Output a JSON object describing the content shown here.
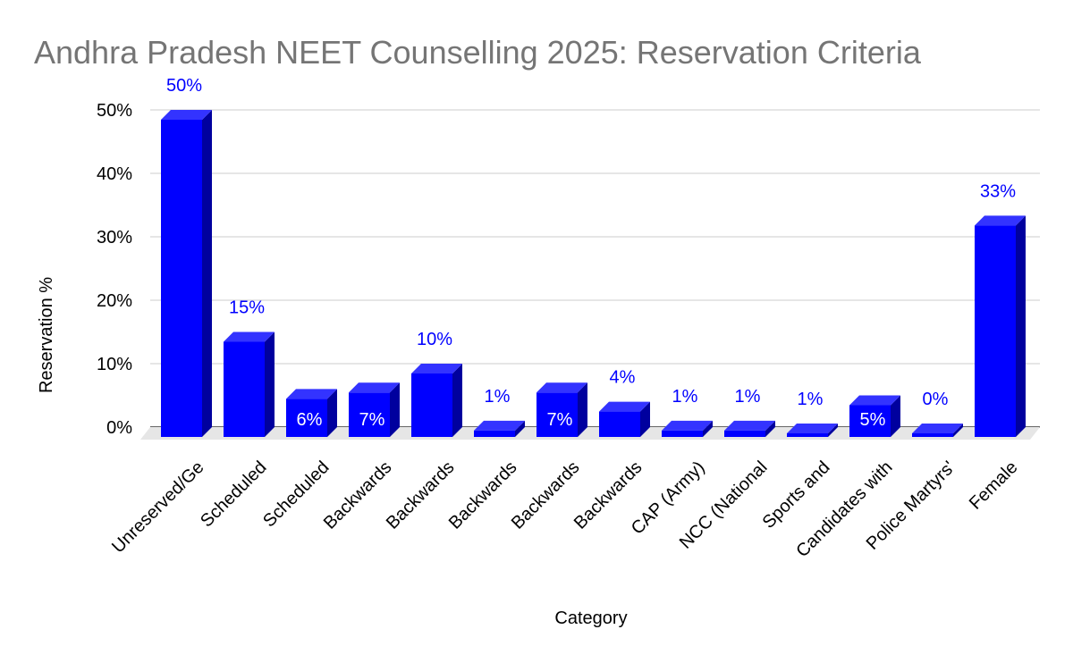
{
  "chart_data": {
    "type": "bar",
    "title": "Andhra Pradesh NEET Counselling 2025: Reservation Criteria",
    "xlabel": "Category",
    "ylabel": "Reservation %",
    "ylim": [
      0,
      50
    ],
    "yticks": [
      "0%",
      "10%",
      "20%",
      "30%",
      "40%",
      "50%"
    ],
    "grid": true,
    "legend": "none",
    "style": "3d-columns",
    "colors": {
      "bar_front": "#0000ff",
      "bar_top": "#3333ff",
      "bar_side": "#00009e",
      "label_outside": "#0000ff",
      "label_inside": "#ffffff",
      "gridline": "#cccccc",
      "floor": "#e6e6e6"
    },
    "categories": [
      "Unreserved/Ge",
      "Scheduled",
      "Scheduled",
      "Backwards",
      "Backwards",
      "Backwards",
      "Backwards",
      "Backwards",
      "CAP (Army)",
      "NCC (National",
      "Sports and",
      "Candidates with",
      "Police Martyrs'",
      "Female"
    ],
    "values": [
      50,
      15,
      6,
      7,
      10,
      1,
      7,
      4,
      1,
      1,
      0.5,
      5,
      0.25,
      33.33
    ],
    "data_labels": [
      "50%",
      "15%",
      "6%",
      "7%",
      "10%",
      "1%",
      "7%",
      "4%",
      "1%",
      "1%",
      "1%",
      "5%",
      "0%",
      "33%"
    ]
  }
}
